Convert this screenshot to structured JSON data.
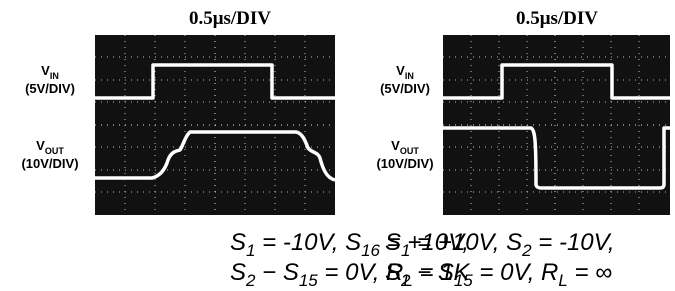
{
  "panels": [
    {
      "title": "0.5μs/DIV",
      "inputs": [
        {
          "name": [
            "V",
            "IN"
          ],
          "scale": "(5V/DIV)"
        },
        {
          "name": [
            "V",
            "OUT"
          ],
          "scale": "(10V/DIV)"
        }
      ],
      "caption": [
        [
          "S",
          "1",
          " = -10V, S",
          "16",
          " = +10V,"
        ],
        [
          "S",
          "2",
          " − S",
          "15",
          " = 0V, R",
          "L",
          " = 1K"
        ]
      ]
    },
    {
      "title": "0.5μs/DIV",
      "inputs": [
        {
          "name": [
            "V",
            "IN"
          ],
          "scale": "(5V/DIV)"
        },
        {
          "name": [
            "V",
            "OUT"
          ],
          "scale": "(10V/DIV)"
        }
      ],
      "caption": [
        [
          "S",
          "1",
          " = +10V, S",
          "2",
          " = -10V,"
        ],
        [
          "S",
          "2",
          " − S",
          "15",
          " = 0V, R",
          "L",
          " = ∞"
        ]
      ]
    }
  ]
}
